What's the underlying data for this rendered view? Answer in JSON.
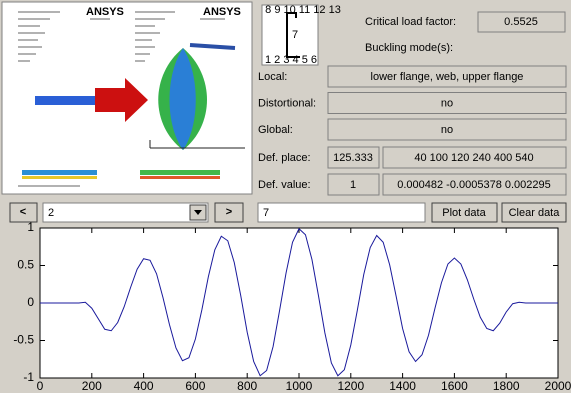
{
  "preview": {
    "logos": [
      "ANSYS",
      "ANSYS"
    ]
  },
  "section": {
    "top_labels": "8 9 10 11 12 13",
    "side_label": "7",
    "bottom_labels": "1 2 3 4 5 6"
  },
  "results": {
    "critical_load_factor": {
      "label": "Critical load factor:",
      "value": "0.5525"
    },
    "buckling_modes_label": "Buckling mode(s):",
    "rows": [
      {
        "label": "Local:",
        "value": "lower flange, web, upper flange"
      },
      {
        "label": "Distortional:",
        "value": "no"
      },
      {
        "label": "Global:",
        "value": "no"
      }
    ],
    "def_place": {
      "label": "Def. place:",
      "first": "125.333",
      "rest": "40 100 120 240 400 540"
    },
    "def_value": {
      "label": "Def. value:",
      "first": "1",
      "rest": "0.000482 -0.0005378 0.002295"
    }
  },
  "controls": {
    "prev": "<",
    "mode": "2",
    "next": ">",
    "input": "7",
    "plot": "Plot data",
    "clear": "Clear data"
  },
  "chart_data": {
    "type": "line",
    "x": [
      0,
      25,
      50,
      75,
      100,
      125,
      150,
      175,
      200,
      225,
      250,
      275,
      300,
      325,
      350,
      375,
      400,
      425,
      450,
      475,
      500,
      525,
      550,
      575,
      600,
      625,
      650,
      675,
      700,
      725,
      750,
      775,
      800,
      825,
      850,
      875,
      900,
      925,
      950,
      975,
      1000,
      1025,
      1050,
      1075,
      1100,
      1125,
      1150,
      1175,
      1200,
      1225,
      1250,
      1275,
      1300,
      1325,
      1350,
      1375,
      1400,
      1425,
      1450,
      1475,
      1500,
      1525,
      1550,
      1575,
      1600,
      1625,
      1650,
      1675,
      1700,
      1725,
      1750,
      1775,
      1800,
      1825,
      1850,
      1875,
      1900,
      1925,
      1950,
      1975,
      2000
    ],
    "series": [
      {
        "color": "#1a1a9c",
        "values": [
          0,
          0,
          0,
          0,
          0,
          0,
          0,
          0.01,
          -0.07,
          -0.21,
          -0.35,
          -0.37,
          -0.26,
          -0.05,
          0.21,
          0.45,
          0.59,
          0.57,
          0.39,
          0.07,
          -0.29,
          -0.6,
          -0.77,
          -0.73,
          -0.48,
          -0.09,
          0.35,
          0.71,
          0.89,
          0.83,
          0.54,
          0.1,
          -0.39,
          -0.78,
          -0.97,
          -0.9,
          -0.58,
          -0.1,
          0.4,
          0.81,
          0.99,
          0.91,
          0.58,
          0.1,
          -0.4,
          -0.8,
          -0.97,
          -0.89,
          -0.56,
          -0.1,
          0.38,
          0.74,
          0.9,
          0.81,
          0.51,
          0.09,
          -0.34,
          -0.65,
          -0.78,
          -0.69,
          -0.43,
          -0.07,
          0.27,
          0.52,
          0.6,
          0.52,
          0.31,
          0.05,
          -0.19,
          -0.34,
          -0.37,
          -0.27,
          -0.12,
          -0.01,
          0.01,
          0,
          0,
          0,
          0,
          0,
          0
        ]
      }
    ],
    "xlim": [
      0,
      2000
    ],
    "ylim": [
      -1,
      1
    ],
    "xticks": [
      0,
      200,
      400,
      600,
      800,
      1000,
      1200,
      1400,
      1600,
      1800,
      2000
    ],
    "yticks": [
      -1,
      -0.5,
      0,
      0.5,
      1
    ],
    "grid": false
  }
}
